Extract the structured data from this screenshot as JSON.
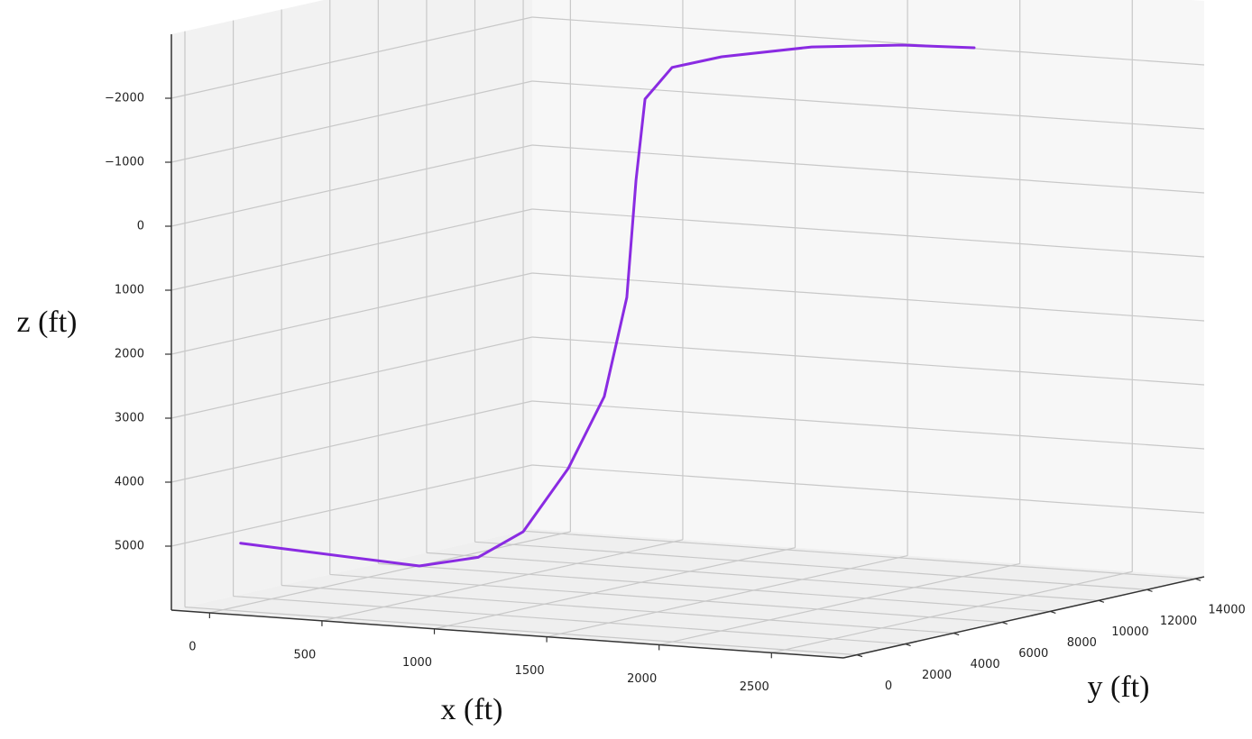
{
  "chart_data": {
    "type": "line3d",
    "xlabel": "x (ft)",
    "ylabel": "y (ft)",
    "zlabel": "z (ft)",
    "xlim": [
      -170,
      2820
    ],
    "ylim": [
      -560,
      14370
    ],
    "zlim": [
      6000,
      -3000
    ],
    "xticks": [
      0,
      500,
      1000,
      1500,
      2000,
      2500
    ],
    "yticks": [
      0,
      2000,
      4000,
      6000,
      8000,
      10000,
      12000,
      14000
    ],
    "zticks": [
      {
        "value": -2000,
        "label": "−2000"
      },
      {
        "value": -1000,
        "label": "−1000"
      },
      0,
      1000,
      2000,
      3000,
      4000,
      5000
    ],
    "grid": true,
    "series": [
      {
        "color": "#8a2be2",
        "x": [
          24,
          787,
          973,
          1066,
          1159,
          1212,
          1237,
          1235,
          1232,
          1245,
          1304,
          1490,
          1731,
          1890
        ],
        "y": [
          500,
          800,
          1500,
          2500,
          3500,
          4500,
          5200,
          5600,
          6000,
          7000,
          8500,
          10500,
          12000,
          13500
        ],
        "z": [
          4997,
          5186,
          5064,
          4727,
          3800,
          2746,
          1251,
          -546,
          -1780,
          -2193,
          -2247,
          -2277,
          -2239,
          -2109
        ]
      }
    ]
  }
}
